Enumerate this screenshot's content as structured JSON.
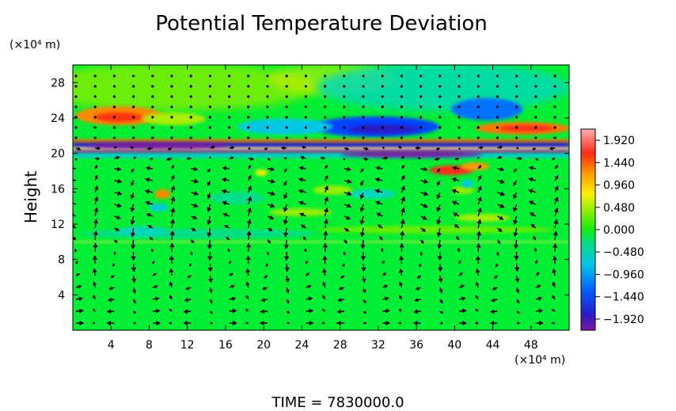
{
  "chart_data": {
    "type": "heatmap",
    "title": "Potential Temperature Deviation",
    "ylabel": "Height",
    "x_unit": "(×10⁴ m)",
    "y_unit": "(×10⁴ m)",
    "xlim": [
      0,
      52
    ],
    "ylim": [
      0,
      30
    ],
    "x_ticks": [
      4,
      8,
      12,
      16,
      20,
      24,
      28,
      32,
      36,
      40,
      44,
      48
    ],
    "y_ticks": [
      4,
      8,
      12,
      16,
      20,
      24,
      28
    ],
    "colorbar": {
      "min": -2.16,
      "max": 2.16,
      "ticks": [
        "1.920",
        "1.440",
        "0.960",
        "0.480",
        "0.000",
        "−0.480",
        "−0.960",
        "−1.440",
        "−1.920"
      ],
      "tick_values": [
        1.92,
        1.44,
        0.96,
        0.48,
        0.0,
        -0.48,
        -0.96,
        -1.44,
        -1.92
      ]
    },
    "field_features": [
      {
        "x": 7,
        "y": 23.8,
        "value": 1.4
      },
      {
        "x": 47,
        "y": 22.3,
        "value": 1.3
      },
      {
        "x": 29,
        "y": 22.5,
        "value": -1.6
      },
      {
        "x": 41,
        "y": 23.6,
        "value": -1.1
      },
      {
        "x": 25,
        "y": 20.8,
        "value": 1.9
      },
      {
        "x": 10,
        "y": 21.0,
        "value": -1.9
      },
      {
        "x": 41,
        "y": 17.5,
        "value": 1.7
      },
      {
        "x": 10,
        "y": 15.0,
        "value": 0.9
      }
    ],
    "overlay": "wind vectors"
  },
  "footer": {
    "time_label": "TIME  =  7830000.0"
  },
  "colors": {
    "background": "#00ee33",
    "arrows": "#000000"
  }
}
